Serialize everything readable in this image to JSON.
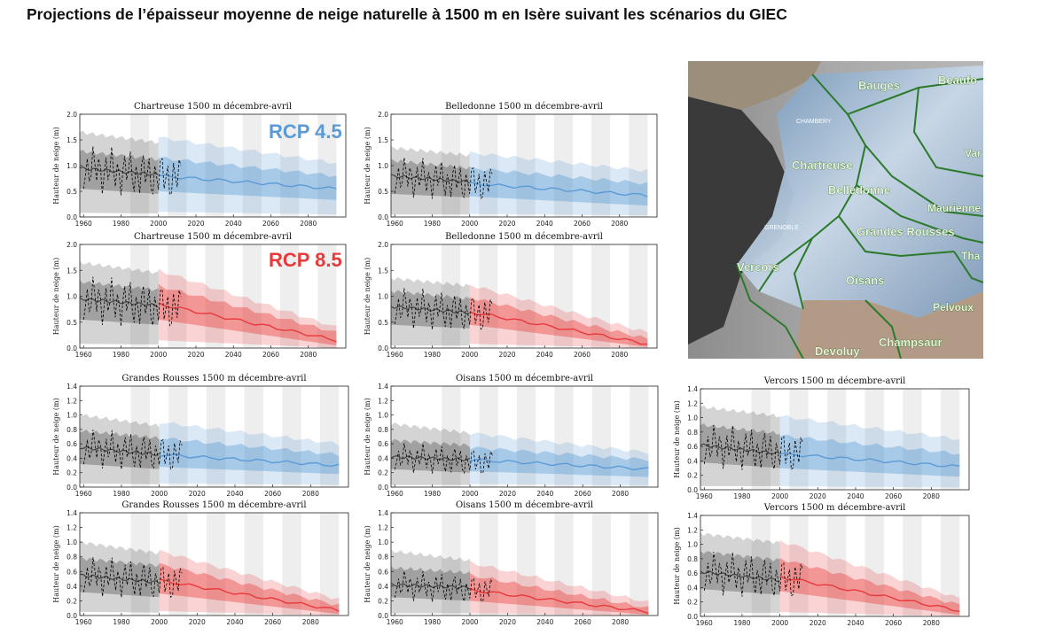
{
  "page": {
    "title": "Projections de l’épaisseur moyenne de neige naturelle à 1500 m en Isère suivant les scénarios du GIEC",
    "rcp45_label": "RCP 4.5",
    "rcp85_label": "RCP 8.5",
    "colors": {
      "rcp45": "#5b9bd5",
      "rcp85": "#e83a3a",
      "historical": "#555555"
    }
  },
  "map": {
    "labels": {
      "bauges": "Bauges",
      "beaufort": "Beaufo",
      "chambery": "CHAMBERY",
      "chartreuse": "Chartreuse",
      "belledonne": "Belledonne",
      "maurienne": "Maurienne",
      "grenoble": "GRENOBLE",
      "grandes_rousses": "Grandes Rousses",
      "vercors": "Vercors",
      "oisans": "Oisans",
      "tha": "Tha",
      "pelvoux": "Pelvoux",
      "devoluy": "Devoluy",
      "champsaur": "Champsaur",
      "var": "Var"
    }
  },
  "chart_data": [
    {
      "id": "chartreuse-45",
      "type": "area",
      "title": "Chartreuse 1500 m décembre-avril",
      "ylabel": "Hauteur de neige (m)",
      "scenario": "RCP 4.5",
      "x_ticks": [
        "1960",
        "1980",
        "2000",
        "2020",
        "2040",
        "2060",
        "2080"
      ],
      "y_ticks": [
        "0.0",
        "0.5",
        "1.0",
        "1.5",
        "2.0"
      ],
      "ylim": [
        0,
        2.0
      ],
      "xlim": [
        1958,
        2100
      ],
      "historical": {
        "years": [
          1958,
          2000
        ],
        "median": [
          0.95,
          0.82
        ],
        "q_inner": [
          [
            0.55,
            1.28
          ],
          [
            0.45,
            1.12
          ]
        ],
        "q_outer": [
          [
            0.08,
            1.65
          ],
          [
            0.07,
            1.45
          ]
        ]
      },
      "projection": {
        "years": [
          2000,
          2095
        ],
        "median": [
          0.8,
          0.55
        ],
        "q_inner": [
          [
            0.5,
            1.15
          ],
          [
            0.33,
            0.8
          ]
        ],
        "q_outer": [
          [
            0.1,
            1.55
          ],
          [
            0.05,
            1.05
          ]
        ]
      }
    },
    {
      "id": "belledonne-45",
      "type": "area",
      "title": "Belledonne 1500 m décembre-avril",
      "ylabel": "Hauteur de neige (m)",
      "scenario": "RCP 4.5",
      "x_ticks": [
        "1960",
        "1980",
        "2000",
        "2020",
        "2040",
        "2060",
        "2080"
      ],
      "y_ticks": [
        "0.0",
        "0.5",
        "1.0",
        "1.5",
        "2.0"
      ],
      "ylim": [
        0,
        2.0
      ],
      "xlim": [
        1958,
        2100
      ],
      "historical": {
        "years": [
          1958,
          2000
        ],
        "median": [
          0.8,
          0.68
        ],
        "q_inner": [
          [
            0.45,
            1.1
          ],
          [
            0.38,
            0.95
          ]
        ],
        "q_outer": [
          [
            0.05,
            1.35
          ],
          [
            0.05,
            1.2
          ]
        ]
      },
      "projection": {
        "years": [
          2000,
          2095
        ],
        "median": [
          0.65,
          0.42
        ],
        "q_inner": [
          [
            0.4,
            0.95
          ],
          [
            0.22,
            0.65
          ]
        ],
        "q_outer": [
          [
            0.06,
            1.25
          ],
          [
            0.03,
            0.9
          ]
        ]
      }
    },
    {
      "id": "chartreuse-85",
      "type": "area",
      "title": "Chartreuse 1500 m décembre-avril",
      "ylabel": "Hauteur de neige (m)",
      "scenario": "RCP 8.5",
      "x_ticks": [
        "1960",
        "1980",
        "2000",
        "2020",
        "2040",
        "2060",
        "2080"
      ],
      "y_ticks": [
        "0.0",
        "0.5",
        "1.0",
        "1.5",
        "2.0"
      ],
      "ylim": [
        0,
        2.0
      ],
      "xlim": [
        1958,
        2100
      ],
      "historical": {
        "years": [
          1958,
          2000
        ],
        "median": [
          0.95,
          0.82
        ],
        "q_inner": [
          [
            0.55,
            1.28
          ],
          [
            0.45,
            1.12
          ]
        ],
        "q_outer": [
          [
            0.08,
            1.65
          ],
          [
            0.07,
            1.45
          ]
        ]
      },
      "projection": {
        "years": [
          2000,
          2095
        ],
        "median": [
          0.85,
          0.15
        ],
        "q_inner": [
          [
            0.55,
            1.2
          ],
          [
            0.05,
            0.3
          ]
        ],
        "q_outer": [
          [
            0.15,
            1.5
          ],
          [
            0.0,
            0.4
          ]
        ]
      }
    },
    {
      "id": "belledonne-85",
      "type": "area",
      "title": "Belledonne 1500 m décembre-avril",
      "ylabel": "Hauteur de neige (m)",
      "scenario": "RCP 8.5",
      "x_ticks": [
        "1960",
        "1980",
        "2000",
        "2020",
        "2040",
        "2060",
        "2080"
      ],
      "y_ticks": [
        "0.0",
        "0.5",
        "1.0",
        "1.5",
        "2.0"
      ],
      "ylim": [
        0,
        2.0
      ],
      "xlim": [
        1958,
        2100
      ],
      "historical": {
        "years": [
          1958,
          2000
        ],
        "median": [
          0.8,
          0.68
        ],
        "q_inner": [
          [
            0.45,
            1.1
          ],
          [
            0.38,
            0.95
          ]
        ],
        "q_outer": [
          [
            0.05,
            1.35
          ],
          [
            0.05,
            1.2
          ]
        ]
      },
      "projection": {
        "years": [
          2000,
          2095
        ],
        "median": [
          0.7,
          0.08
        ],
        "q_inner": [
          [
            0.45,
            0.98
          ],
          [
            0.02,
            0.18
          ]
        ],
        "q_outer": [
          [
            0.08,
            1.22
          ],
          [
            0.0,
            0.3
          ]
        ]
      }
    },
    {
      "id": "grandes-rousses-45",
      "type": "area",
      "title": "Grandes Rousses 1500 m décembre-avril",
      "ylabel": "Hauteur de neige (m)",
      "scenario": "RCP 4.5",
      "x_ticks": [
        "1960",
        "1980",
        "2000",
        "2020",
        "2040",
        "2060",
        "2080"
      ],
      "y_ticks": [
        "0.0",
        "0.2",
        "0.4",
        "0.6",
        "0.8",
        "1.0",
        "1.2",
        "1.4"
      ],
      "ylim": [
        0,
        1.4
      ],
      "xlim": [
        1958,
        2100
      ],
      "historical": {
        "years": [
          1958,
          2000
        ],
        "median": [
          0.55,
          0.45
        ],
        "q_inner": [
          [
            0.32,
            0.78
          ],
          [
            0.25,
            0.68
          ]
        ],
        "q_outer": [
          [
            0.05,
            1.0
          ],
          [
            0.04,
            0.85
          ]
        ]
      },
      "projection": {
        "years": [
          2000,
          2095
        ],
        "median": [
          0.45,
          0.3
        ],
        "q_inner": [
          [
            0.28,
            0.68
          ],
          [
            0.18,
            0.45
          ]
        ],
        "q_outer": [
          [
            0.05,
            0.9
          ],
          [
            0.03,
            0.6
          ]
        ]
      }
    },
    {
      "id": "oisans-45",
      "type": "area",
      "title": "Oisans 1500 m décembre-avril",
      "ylabel": "Hauteur de neige (m)",
      "scenario": "RCP 4.5",
      "x_ticks": [
        "1960",
        "1980",
        "2000",
        "2020",
        "2040",
        "2060",
        "2080"
      ],
      "y_ticks": [
        "0.0",
        "0.2",
        "0.4",
        "0.6",
        "0.8",
        "1.0",
        "1.2",
        "1.4"
      ],
      "ylim": [
        0,
        1.4
      ],
      "xlim": [
        1958,
        2100
      ],
      "historical": {
        "years": [
          1958,
          2000
        ],
        "median": [
          0.42,
          0.38
        ],
        "q_inner": [
          [
            0.25,
            0.65
          ],
          [
            0.2,
            0.58
          ]
        ],
        "q_outer": [
          [
            0.03,
            0.88
          ],
          [
            0.03,
            0.75
          ]
        ]
      },
      "projection": {
        "years": [
          2000,
          2095
        ],
        "median": [
          0.38,
          0.25
        ],
        "q_inner": [
          [
            0.22,
            0.55
          ],
          [
            0.14,
            0.38
          ]
        ],
        "q_outer": [
          [
            0.04,
            0.75
          ],
          [
            0.02,
            0.48
          ]
        ]
      }
    },
    {
      "id": "vercors-45",
      "type": "area",
      "title": "Vercors 1500 m décembre-avril",
      "ylabel": "Hauteur de neige (m)",
      "scenario": "RCP 4.5",
      "x_ticks": [
        "1960",
        "1980",
        "2000",
        "2020",
        "2040",
        "2060",
        "2080"
      ],
      "y_ticks": [
        "0.0",
        "0.2",
        "0.4",
        "0.6",
        "0.8",
        "1.0",
        "1.2",
        "1.4"
      ],
      "ylim": [
        0,
        1.4
      ],
      "xlim": [
        1958,
        2100
      ],
      "historical": {
        "years": [
          1958,
          2000
        ],
        "median": [
          0.62,
          0.5
        ],
        "q_inner": [
          [
            0.38,
            0.9
          ],
          [
            0.3,
            0.78
          ]
        ],
        "q_outer": [
          [
            0.05,
            1.15
          ],
          [
            0.05,
            1.02
          ]
        ]
      },
      "projection": {
        "years": [
          2000,
          2095
        ],
        "median": [
          0.5,
          0.32
        ],
        "q_inner": [
          [
            0.3,
            0.75
          ],
          [
            0.18,
            0.5
          ]
        ],
        "q_outer": [
          [
            0.05,
            1.02
          ],
          [
            0.03,
            0.7
          ]
        ]
      }
    },
    {
      "id": "grandes-rousses-85",
      "type": "area",
      "title": "Grandes Rousses 1500 m décembre-avril",
      "ylabel": "Hauteur de neige (m)",
      "scenario": "RCP 8.5",
      "x_ticks": [
        "1960",
        "1980",
        "2000",
        "2020",
        "2040",
        "2060",
        "2080"
      ],
      "y_ticks": [
        "0.0",
        "0.2",
        "0.4",
        "0.6",
        "0.8",
        "1.0",
        "1.2",
        "1.4"
      ],
      "ylim": [
        0,
        1.4
      ],
      "xlim": [
        1958,
        2100
      ],
      "historical": {
        "years": [
          1958,
          2000
        ],
        "median": [
          0.55,
          0.45
        ],
        "q_inner": [
          [
            0.32,
            0.78
          ],
          [
            0.25,
            0.68
          ]
        ],
        "q_outer": [
          [
            0.05,
            1.0
          ],
          [
            0.04,
            0.85
          ]
        ]
      },
      "projection": {
        "years": [
          2000,
          2095
        ],
        "median": [
          0.48,
          0.07
        ],
        "q_inner": [
          [
            0.3,
            0.7
          ],
          [
            0.02,
            0.14
          ]
        ],
        "q_outer": [
          [
            0.06,
            0.88
          ],
          [
            0.0,
            0.22
          ]
        ]
      }
    },
    {
      "id": "oisans-85",
      "type": "area",
      "title": "Oisans 1500 m décembre-avril",
      "ylabel": "Hauteur de neige (m)",
      "scenario": "RCP 8.5",
      "x_ticks": [
        "1960",
        "1980",
        "2000",
        "2020",
        "2040",
        "2060",
        "2080"
      ],
      "y_ticks": [
        "0.0",
        "0.2",
        "0.4",
        "0.6",
        "0.8",
        "1.0",
        "1.2",
        "1.4"
      ],
      "ylim": [
        0,
        1.4
      ],
      "xlim": [
        1958,
        2100
      ],
      "historical": {
        "years": [
          1958,
          2000
        ],
        "median": [
          0.42,
          0.38
        ],
        "q_inner": [
          [
            0.25,
            0.65
          ],
          [
            0.2,
            0.58
          ]
        ],
        "q_outer": [
          [
            0.03,
            0.88
          ],
          [
            0.03,
            0.75
          ]
        ]
      },
      "projection": {
        "years": [
          2000,
          2095
        ],
        "median": [
          0.35,
          0.05
        ],
        "q_inner": [
          [
            0.2,
            0.55
          ],
          [
            0.01,
            0.1
          ]
        ],
        "q_outer": [
          [
            0.03,
            0.72
          ],
          [
            0.0,
            0.18
          ]
        ]
      }
    },
    {
      "id": "vercors-85",
      "type": "area",
      "title": "Vercors 1500 m décembre-avril",
      "ylabel": "Hauteur de neige (m)",
      "scenario": "RCP 8.5",
      "x_ticks": [
        "1960",
        "1980",
        "2000",
        "2020",
        "2040",
        "2060",
        "2080"
      ],
      "y_ticks": [
        "0.0",
        "0.2",
        "0.4",
        "0.6",
        "0.8",
        "1.0",
        "1.2",
        "1.4"
      ],
      "ylim": [
        0,
        1.4
      ],
      "xlim": [
        1958,
        2100
      ],
      "historical": {
        "years": [
          1958,
          2000
        ],
        "median": [
          0.62,
          0.5
        ],
        "q_inner": [
          [
            0.38,
            0.9
          ],
          [
            0.3,
            0.78
          ]
        ],
        "q_outer": [
          [
            0.05,
            1.15
          ],
          [
            0.05,
            1.02
          ]
        ]
      },
      "projection": {
        "years": [
          2000,
          2095
        ],
        "median": [
          0.55,
          0.08
        ],
        "q_inner": [
          [
            0.35,
            0.8
          ],
          [
            0.02,
            0.16
          ]
        ],
        "q_outer": [
          [
            0.06,
            1.05
          ],
          [
            0.0,
            0.25
          ]
        ]
      }
    }
  ]
}
